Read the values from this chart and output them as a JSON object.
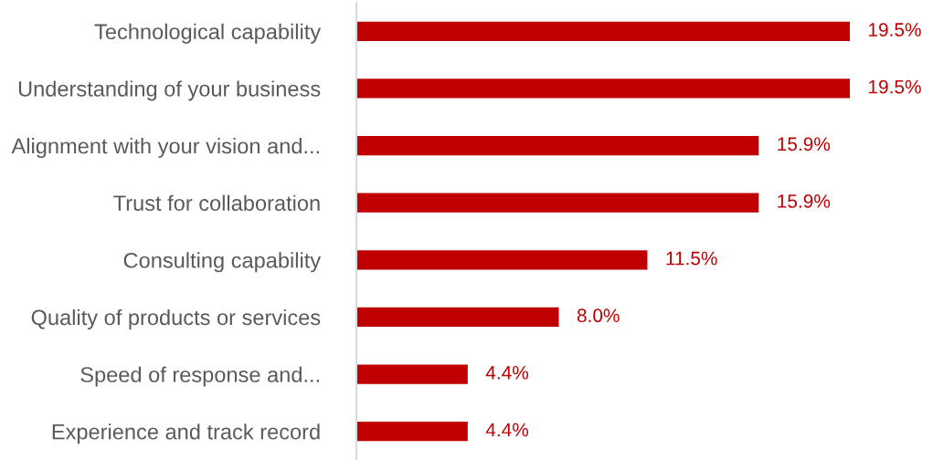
{
  "chart_data": {
    "type": "bar",
    "orientation": "horizontal",
    "categories": [
      "Technological capability",
      "Understanding of your business",
      "Alignment with your vision and...",
      "Trust for collaboration",
      "Consulting capability",
      "Quality of products or services",
      "Speed of response and...",
      "Experience and track record"
    ],
    "values": [
      19.5,
      19.5,
      15.9,
      15.9,
      11.5,
      8.0,
      4.4,
      4.4
    ],
    "value_labels": [
      "19.5%",
      "19.5%",
      "15.9%",
      "15.9%",
      "11.5%",
      "8.0%",
      "4.4%",
      "4.4%"
    ],
    "color": "#c00000",
    "grid": false,
    "legend": false
  }
}
